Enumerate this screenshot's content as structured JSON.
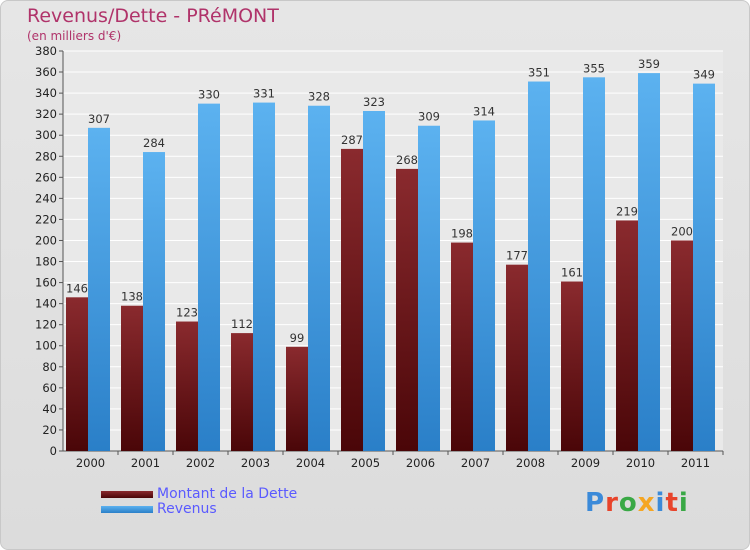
{
  "chart_data": {
    "type": "bar",
    "title": "Revenus/Dette - PRéMONT",
    "subtitle": "(en milliers d'€)",
    "categories": [
      "2000",
      "2001",
      "2002",
      "2003",
      "2004",
      "2005",
      "2006",
      "2007",
      "2008",
      "2009",
      "2010",
      "2011"
    ],
    "series": [
      {
        "name": "Montant de la Dette",
        "color": "#6a0f12",
        "values": [
          146,
          138,
          123,
          112,
          99,
          287,
          268,
          198,
          177,
          161,
          219,
          200
        ]
      },
      {
        "name": "Revenus",
        "color": "#4aa3ea",
        "values": [
          307,
          284,
          330,
          331,
          328,
          323,
          309,
          314,
          351,
          355,
          359,
          349
        ]
      }
    ],
    "ylim": [
      0,
      380
    ],
    "ytick_step": 20,
    "grid": true,
    "legend": "bottom-left"
  },
  "brand": "Proxiti"
}
